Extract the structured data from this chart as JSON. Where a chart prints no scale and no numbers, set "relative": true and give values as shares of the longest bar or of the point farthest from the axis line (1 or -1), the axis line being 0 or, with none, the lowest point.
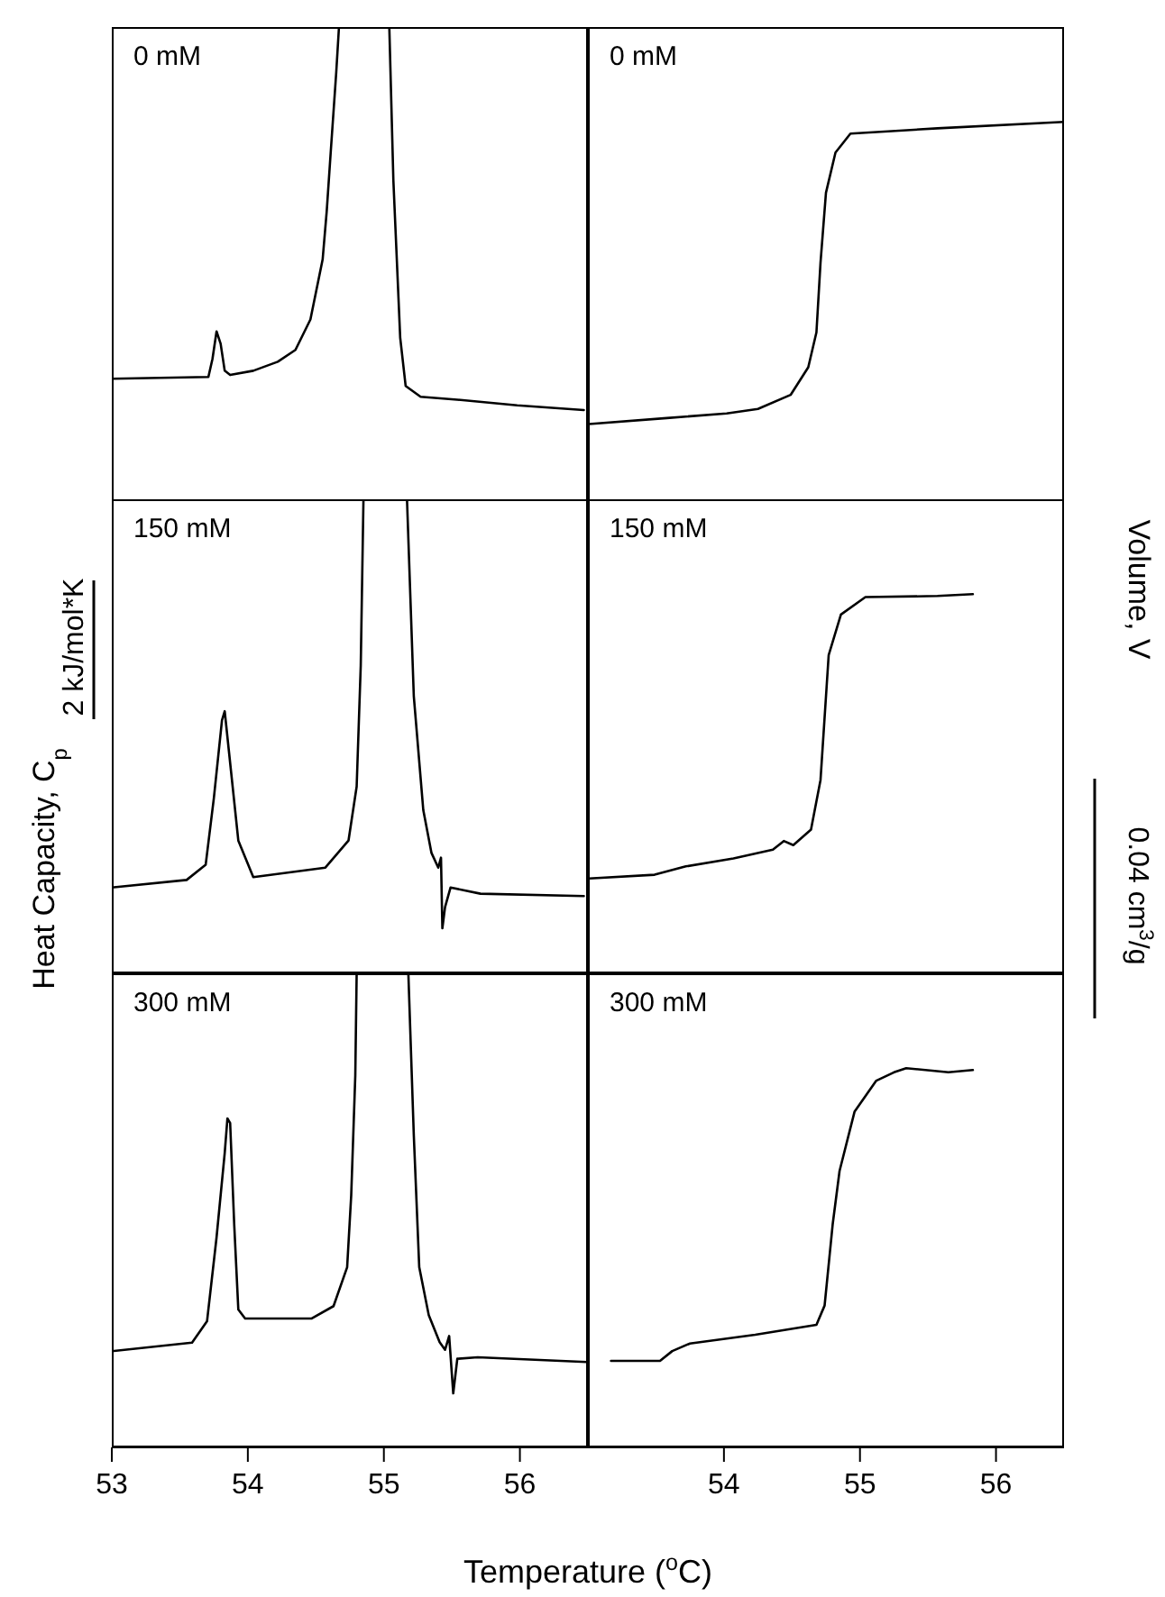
{
  "chart_data": [
    {
      "type": "line",
      "relative": true,
      "tick_labels": false,
      "marker": "none",
      "line_style": "solid",
      "xlim": [
        53,
        56.5
      ],
      "xticks": [
        53,
        54,
        55,
        56
      ],
      "annotations": [
        "0 mM"
      ],
      "series": [
        {
          "color": "#000000",
          "x": [
            53.0,
            53.71,
            53.74,
            53.77,
            53.8,
            53.83,
            53.87,
            54.04,
            54.22,
            54.35,
            54.46,
            54.55,
            54.58,
            54.61,
            54.65,
            54.67,
            55.04,
            55.07,
            55.12,
            55.16,
            55.27,
            55.54,
            55.98,
            56.47
          ],
          "values": [
            0.258,
            0.262,
            0.3,
            0.358,
            0.332,
            0.275,
            0.266,
            0.275,
            0.294,
            0.319,
            0.383,
            0.51,
            0.612,
            0.739,
            0.905,
            1.0,
            1.0,
            0.676,
            0.345,
            0.243,
            0.22,
            0.214,
            0.202,
            0.192
          ]
        }
      ]
    },
    {
      "type": "line",
      "relative": true,
      "tick_labels": false,
      "marker": "none",
      "line_style": "solid",
      "xlim": [
        53,
        56.5
      ],
      "xticks": [
        54,
        55,
        56
      ],
      "annotations": [
        "0 mM"
      ],
      "series": [
        {
          "color": "#000000",
          "x": [
            53.01,
            53.58,
            54.02,
            54.25,
            54.49,
            54.62,
            54.68,
            54.71,
            54.75,
            54.82,
            54.93,
            55.57,
            56.5
          ],
          "values": [
            0.203,
            0.219,
            0.231,
            0.243,
            0.28,
            0.353,
            0.445,
            0.629,
            0.813,
            0.919,
            0.969,
            0.983,
            1.0
          ]
        }
      ]
    },
    {
      "type": "line",
      "relative": true,
      "tick_labels": false,
      "marker": "none",
      "line_style": "solid",
      "xlim": [
        53,
        56.5
      ],
      "xticks": [
        53,
        54,
        55,
        56
      ],
      "ylabel": "Heat Capacity, C$_{p}$",
      "annotations": [
        "150 mM",
        "2 kJ/mol*K"
      ],
      "series": [
        {
          "color": "#000000",
          "x": [
            53.0,
            53.55,
            53.69,
            53.75,
            53.81,
            53.83,
            53.86,
            53.93,
            54.04,
            54.57,
            54.74,
            54.8,
            54.83,
            54.85,
            55.17,
            55.22,
            55.29,
            55.35,
            55.4,
            55.42,
            55.43,
            55.45,
            55.49,
            55.71,
            56.47
          ],
          "values": [
            0.181,
            0.197,
            0.229,
            0.369,
            0.534,
            0.553,
            0.471,
            0.28,
            0.203,
            0.223,
            0.28,
            0.394,
            0.649,
            1.0,
            1.0,
            0.585,
            0.344,
            0.254,
            0.223,
            0.244,
            0.095,
            0.14,
            0.181,
            0.168,
            0.163
          ]
        }
      ]
    },
    {
      "type": "line",
      "relative": true,
      "tick_labels": false,
      "marker": "none",
      "line_style": "solid",
      "xlim": [
        53,
        56.5
      ],
      "xticks": [
        54,
        55,
        56
      ],
      "ylabel": "Volume, V",
      "annotations": [
        "150 mM",
        "0.04 cm$^{3}$/g"
      ],
      "series": [
        {
          "color": "#000000",
          "x": [
            53.01,
            53.49,
            53.72,
            54.07,
            54.36,
            54.44,
            54.51,
            54.64,
            54.71,
            54.77,
            54.86,
            55.04,
            55.57,
            55.83
          ],
          "values": [
            0.25,
            0.26,
            0.282,
            0.303,
            0.326,
            0.349,
            0.338,
            0.379,
            0.51,
            0.839,
            0.946,
            0.992,
            0.995,
            1.0
          ]
        }
      ]
    },
    {
      "type": "line",
      "relative": true,
      "tick_labels": "x",
      "marker": "none",
      "line_style": "solid",
      "xlim": [
        53,
        56.5
      ],
      "xticks": [
        53,
        54,
        55,
        56
      ],
      "xlabel": "Temperature ($^{o}$C)",
      "annotations": [
        "300 mM"
      ],
      "series": [
        {
          "color": "#000000",
          "x": [
            53.0,
            53.59,
            53.7,
            53.77,
            53.83,
            53.85,
            53.87,
            53.9,
            53.93,
            53.98,
            54.47,
            54.63,
            54.73,
            54.76,
            54.79,
            54.8,
            55.18,
            55.22,
            55.26,
            55.33,
            55.41,
            55.45,
            55.48,
            55.51,
            55.54,
            55.69,
            56.49
          ],
          "values": [
            0.203,
            0.221,
            0.266,
            0.443,
            0.621,
            0.694,
            0.684,
            0.469,
            0.291,
            0.272,
            0.272,
            0.298,
            0.38,
            0.532,
            0.785,
            1.0,
            1.0,
            0.659,
            0.38,
            0.279,
            0.222,
            0.206,
            0.235,
            0.114,
            0.187,
            0.19,
            0.18
          ]
        }
      ]
    },
    {
      "type": "line",
      "relative": true,
      "tick_labels": "x",
      "marker": "none",
      "line_style": "solid",
      "xlim": [
        53,
        56.5
      ],
      "xticks": [
        54,
        55,
        56
      ],
      "annotations": [
        "300 mM"
      ],
      "series": [
        {
          "color": "#000000",
          "x": [
            53.17,
            53.53,
            53.62,
            53.75,
            54.23,
            54.68,
            54.74,
            54.8,
            54.85,
            54.96,
            55.12,
            55.25,
            55.34,
            55.65,
            55.83
          ],
          "values": [
            0.228,
            0.228,
            0.254,
            0.274,
            0.297,
            0.323,
            0.374,
            0.59,
            0.729,
            0.885,
            0.967,
            0.989,
            1.0,
            0.989,
            0.995
          ]
        }
      ]
    }
  ]
}
